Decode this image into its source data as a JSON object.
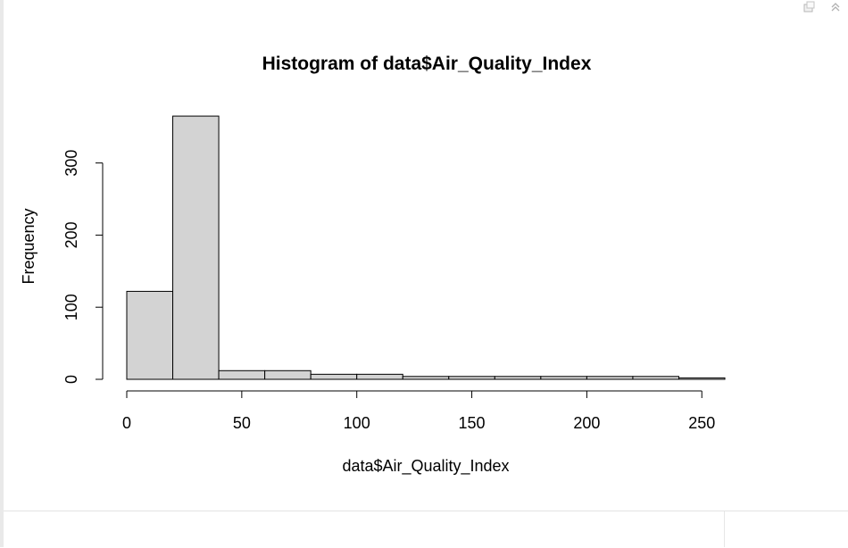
{
  "chart_data": {
    "type": "bar",
    "title": "Histogram of data$Air_Quality_Index",
    "xlabel": "data$Air_Quality_Index",
    "ylabel": "Frequency",
    "xlim": [
      0,
      260
    ],
    "ylim": [
      0,
      365
    ],
    "x_ticks": [
      "0",
      "50",
      "100",
      "150",
      "200",
      "250"
    ],
    "y_ticks": [
      "0",
      "100",
      "200",
      "300"
    ],
    "bin_edges": [
      0,
      20,
      40,
      60,
      80,
      100,
      120,
      140,
      160,
      180,
      200,
      220,
      240,
      260
    ],
    "values": [
      122,
      365,
      12,
      12,
      7,
      7,
      4,
      4,
      4,
      4,
      4,
      4,
      2
    ],
    "bar_fill": "#d3d3d3",
    "bar_stroke": "#000000",
    "grid": false
  },
  "toolbar": {
    "export_icon": "export-icon",
    "collapse_icon": "double-chevron-up-icon"
  }
}
